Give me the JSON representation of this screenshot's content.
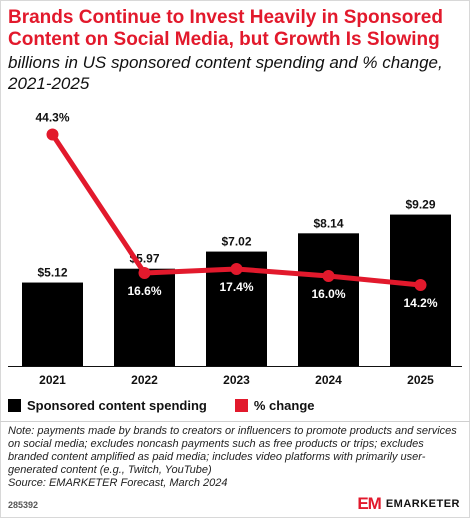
{
  "title": "Brands Continue to Invest Heavily in Sponsored Content on Social Media, but Growth Is Slowing",
  "subtitle": "billions in US sponsored content spending and % change, 2021-2025",
  "colors": {
    "bar": "#000000",
    "line": "#e2192c",
    "title": "#e2192c"
  },
  "chart_data": {
    "type": "bar",
    "categories": [
      "2021",
      "2022",
      "2023",
      "2024",
      "2025"
    ],
    "series": [
      {
        "name": "Sponsored content spending",
        "type": "bar",
        "values": [
          5.12,
          5.97,
          7.02,
          8.14,
          9.29
        ],
        "labels": [
          "$5.12",
          "$5.97",
          "$7.02",
          "$8.14",
          "$9.29"
        ]
      },
      {
        "name": "% change",
        "type": "line",
        "values": [
          44.3,
          16.6,
          17.4,
          16.0,
          14.2
        ],
        "labels": [
          "44.3%",
          "16.6%",
          "17.4%",
          "16.0%",
          "14.2%"
        ]
      }
    ],
    "ylim_bar": [
      0,
      10
    ],
    "ylim_line": [
      0,
      50
    ],
    "legend_placement": "bottom-left",
    "grid": false
  },
  "notes": {
    "note": "Note: payments made by brands to creators or influencers to promote products and services on social media; excludes noncash payments such as free products or trips; excludes branded content amplified as paid media; includes video platforms with primarily user-generated content (e.g., Twitch, YouTube)",
    "source": "Source: EMARKETER Forecast, March 2024"
  },
  "chart_id": "285392",
  "brand": {
    "mark": "EM",
    "name": "EMARKETER"
  }
}
